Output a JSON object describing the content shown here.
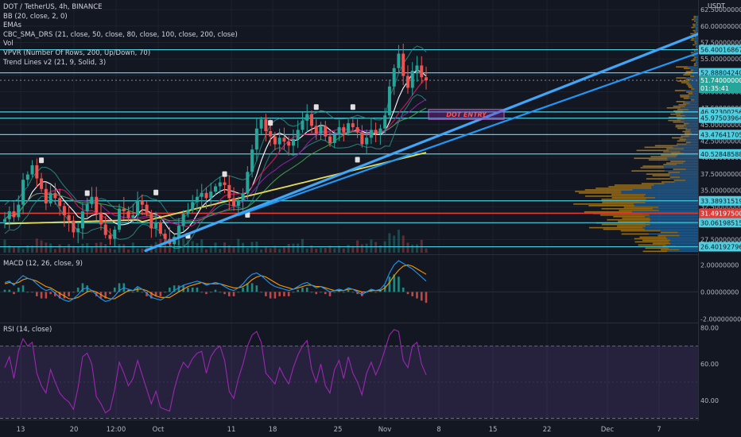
{
  "header": {
    "symbol_line": "DOT / TetherUS, 4h, BINANCE",
    "currency": "USDT"
  },
  "indicators": [
    "BB (20, close, 2, 0)",
    "EMAs",
    "CBC_SMA_DRS (21, close, 50, close, 80, close, 100, close, 200, close)",
    "Vol",
    "VPVR (Number Of Rows, 200, Up/Down, 70)",
    "Trend Lines v2 (21, 9, Solid, 3)"
  ],
  "annotation": "DOT ENTRY",
  "colors": {
    "background": "#131722",
    "level_line": "#4dd0e1",
    "trendline": "#2196f3",
    "red_level": "#e53935",
    "rsi": "#9c27b0",
    "macd": "#2196f3",
    "signal": "#ff9800",
    "sma200": "#e6dc5a",
    "vp_orange": "#c08a1e",
    "vp_blue": "#2b6fa8"
  },
  "chart_data": [
    {
      "type": "candlestick",
      "pane": "price",
      "y_axis_ticks": [
        "62.50000000",
        "60.00000000",
        "57.50000000",
        "55.00000000",
        "52.50000000",
        "50.00000000",
        "47.50000000",
        "45.00000000",
        "42.50000000",
        "40.00000000",
        "37.50000000",
        "35.00000000",
        "32.50000000",
        "30.00000000",
        "27.50000000"
      ],
      "ylim": [
        25.5,
        63
      ],
      "horizontal_levels": [
        "56.40016867",
        "52.88804240",
        "46.92300256",
        "45.97503964",
        "43.47641705",
        "40.52848588",
        "33.38931519",
        "30.06198515",
        "26.40192796"
      ],
      "red_level": "31.49197500",
      "last_price": "51.74000000",
      "countdown": "01:35:41",
      "trendlines": [
        {
          "from": [
            "Oct 3",
            25.8
          ],
          "to": [
            "Dec 13",
            57.5
          ]
        },
        {
          "from": [
            "Oct 10",
            31.2
          ],
          "to": [
            "Dec 13",
            55.8
          ]
        }
      ],
      "entry_box": {
        "label": "DOT ENTRY",
        "x_range": [
          "Nov 7",
          "Nov 21"
        ],
        "y_range": [
          45.8,
          47.3
        ]
      },
      "series_close": [
        30.6,
        31.8,
        30.9,
        32.8,
        36.6,
        37.4,
        38.8,
        36.8,
        35.2,
        33.0,
        34.6,
        33.8,
        32.6,
        31.2,
        30.4,
        28.6,
        29.2,
        31.8,
        32.9,
        34.0,
        31.6,
        29.8,
        28.2,
        27.6,
        29.0,
        32.2,
        31.8,
        30.8,
        31.2,
        33.4,
        32.8,
        31.6,
        29.2,
        30.1,
        28.4,
        27.6,
        26.8,
        27.9,
        29.6,
        31.4,
        32.0,
        33.2,
        34.0,
        34.6,
        33.8,
        34.8,
        35.6,
        36.2,
        35.8,
        33.8,
        32.6,
        33.4,
        34.5,
        37.8,
        41.2,
        44.4,
        45.8,
        44.0,
        43.2,
        42.0,
        43.0,
        42.4,
        41.8,
        42.8,
        44.2,
        45.6,
        46.6,
        44.8,
        43.6,
        44.8,
        43.2,
        42.2,
        43.4,
        44.6,
        43.8,
        45.2,
        44.6,
        43.8,
        42.0,
        43.0,
        44.2,
        43.6,
        44.4,
        46.4,
        50.8,
        53.6,
        55.8,
        52.4,
        50.6,
        53.2,
        54.0,
        52.2,
        51.74
      ]
    },
    {
      "type": "line",
      "pane": "macd",
      "title": "MACD (12, 26, close, 9)",
      "y_axis_ticks": [
        "2.00000000",
        "0.00000000",
        "-2.00000000"
      ],
      "ylim": [
        -2.2,
        2.6
      ],
      "series": [
        {
          "name": "MACD",
          "values": [
            0.7,
            0.8,
            0.5,
            0.9,
            1.2,
            1.0,
            0.9,
            0.6,
            0.3,
            0.1,
            0.2,
            -0.1,
            -0.4,
            -0.6,
            -0.7,
            -0.5,
            -0.2,
            0.2,
            0.3,
            0.1,
            -0.2,
            -0.5,
            -0.7,
            -0.6,
            -0.3,
            0.1,
            0.3,
            0.2,
            0.1,
            0.4,
            0.2,
            -0.1,
            -0.4,
            -0.5,
            -0.6,
            -0.4,
            -0.2,
            0.1,
            0.3,
            0.5,
            0.6,
            0.7,
            0.8,
            0.7,
            0.5,
            0.6,
            0.7,
            0.6,
            0.4,
            0.2,
            0.1,
            0.3,
            0.6,
            1.0,
            1.3,
            1.4,
            1.2,
            0.9,
            0.6,
            0.4,
            0.3,
            0.2,
            0.1,
            0.2,
            0.4,
            0.6,
            0.7,
            0.5,
            0.3,
            0.4,
            0.2,
            0.0,
            0.1,
            0.2,
            0.1,
            0.3,
            0.2,
            0.0,
            -0.2,
            0.0,
            0.2,
            0.1,
            0.2,
            0.6,
            1.4,
            2.0,
            2.3,
            2.1,
            1.9,
            1.7,
            1.4,
            1.1,
            0.8
          ]
        },
        {
          "name": "Signal",
          "values": [
            0.6,
            0.7,
            0.6,
            0.7,
            0.9,
            1.0,
            0.9,
            0.8,
            0.6,
            0.4,
            0.3,
            0.1,
            -0.1,
            -0.3,
            -0.5,
            -0.5,
            -0.4,
            -0.2,
            0.0,
            0.1,
            0.0,
            -0.2,
            -0.4,
            -0.5,
            -0.5,
            -0.3,
            -0.1,
            0.1,
            0.1,
            0.2,
            0.2,
            0.1,
            -0.1,
            -0.3,
            -0.4,
            -0.4,
            -0.4,
            -0.2,
            0.0,
            0.2,
            0.4,
            0.5,
            0.6,
            0.7,
            0.6,
            0.6,
            0.6,
            0.6,
            0.5,
            0.4,
            0.3,
            0.3,
            0.4,
            0.6,
            0.9,
            1.1,
            1.2,
            1.1,
            0.9,
            0.7,
            0.5,
            0.4,
            0.3,
            0.2,
            0.3,
            0.4,
            0.5,
            0.5,
            0.4,
            0.4,
            0.3,
            0.2,
            0.1,
            0.1,
            0.1,
            0.2,
            0.2,
            0.1,
            0.0,
            0.0,
            0.1,
            0.1,
            0.1,
            0.3,
            0.7,
            1.2,
            1.6,
            1.9,
            2.0,
            1.9,
            1.7,
            1.5,
            1.3
          ]
        }
      ]
    },
    {
      "type": "line",
      "pane": "rsi",
      "title": "RSI (14, close)",
      "y_axis_ticks": [
        "80.00",
        "60.00",
        "40.00"
      ],
      "ylim": [
        32,
        82
      ],
      "bands": [
        70,
        30
      ],
      "series": [
        {
          "name": "RSI",
          "values": [
            58,
            64,
            52,
            67,
            74,
            70,
            72,
            55,
            48,
            44,
            57,
            50,
            44,
            41,
            39,
            35,
            47,
            64,
            66,
            60,
            42,
            38,
            33,
            35,
            46,
            61,
            55,
            48,
            52,
            62,
            54,
            46,
            38,
            45,
            36,
            35,
            34,
            46,
            55,
            61,
            58,
            63,
            66,
            67,
            55,
            64,
            68,
            70,
            62,
            45,
            41,
            52,
            60,
            70,
            76,
            78,
            72,
            55,
            52,
            49,
            58,
            53,
            49,
            58,
            65,
            70,
            73,
            57,
            50,
            60,
            48,
            44,
            57,
            62,
            52,
            64,
            55,
            50,
            43,
            55,
            61,
            54,
            60,
            68,
            76,
            79,
            78,
            62,
            58,
            70,
            72,
            60,
            54
          ]
        }
      ]
    },
    {
      "type": "axis",
      "pane": "time",
      "tick_labels": [
        "13",
        "20",
        "12:00",
        "Oct",
        "11",
        "18",
        "25",
        "Nov",
        "8",
        "15",
        "22",
        "Dec",
        "7"
      ]
    }
  ]
}
